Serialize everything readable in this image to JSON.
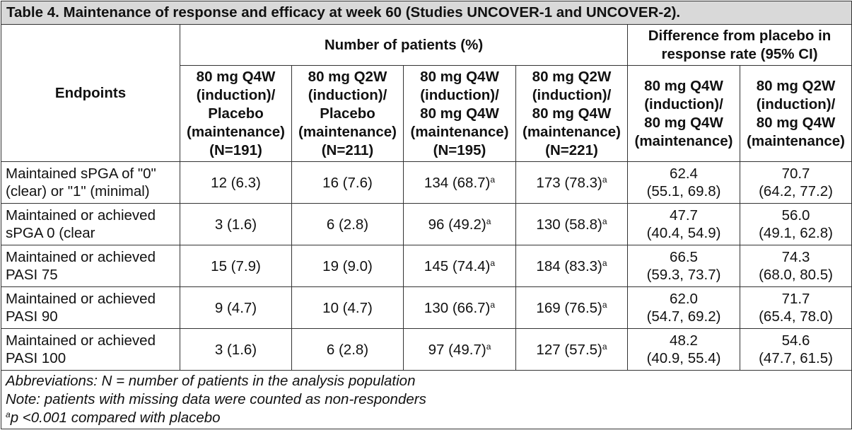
{
  "title": "Table 4. Maintenance of response and efficacy at week 60 (Studies UNCOVER-1 and UNCOVER-2).",
  "header": {
    "endpoints": "Endpoints",
    "number_of_patients": "Number of patients (%)",
    "difference": "Difference from placebo in response rate (95% CI)",
    "columns": [
      {
        "l1": "80 mg Q4W",
        "l2": "(induction)/",
        "l3": "Placebo",
        "l4": "(maintenance)",
        "l5": "(N=191)"
      },
      {
        "l1": "80 mg Q2W",
        "l2": "(induction)/",
        "l3": "Placebo",
        "l4": "(maintenance)",
        "l5": "(N=211)"
      },
      {
        "l1": "80 mg Q4W",
        "l2": "(induction)/",
        "l3": "80 mg Q4W",
        "l4": "(maintenance)",
        "l5": "(N=195)"
      },
      {
        "l1": "80 mg Q2W",
        "l2": "(induction)/",
        "l3": "80 mg Q4W",
        "l4": "(maintenance)",
        "l5": "(N=221)"
      },
      {
        "l1": "80 mg Q4W",
        "l2": "(induction)/",
        "l3": "80 mg Q4W",
        "l4": "(maintenance)"
      },
      {
        "l1": "80 mg Q2W",
        "l2": "(induction)/",
        "l3": "80 mg Q4W",
        "l4": "(maintenance)"
      }
    ]
  },
  "rows": [
    {
      "l1": "Maintained sPGA of \"0\"",
      "l2": "(clear) or \"1\" (minimal)",
      "v1": "12 (6.3)",
      "v2": "16 (7.6)",
      "v3": "134 (68.7)",
      "v4": "173 (78.3)",
      "d1a": "62.4",
      "d1b": "(55.1, 69.8)",
      "d2a": "70.7",
      "d2b": "(64.2, 77.2)"
    },
    {
      "l1": "Maintained or achieved",
      "l2": "sPGA 0 (clear",
      "v1": "3 (1.6)",
      "v2": "6 (2.8)",
      "v3": "96 (49.2)",
      "v4": "130 (58.8)",
      "d1a": "47.7",
      "d1b": "(40.4, 54.9)",
      "d2a": "56.0",
      "d2b": "(49.1, 62.8)"
    },
    {
      "l1": "Maintained or achieved",
      "l2": "PASI 75",
      "v1": "15 (7.9)",
      "v2": "19 (9.0)",
      "v3": "145 (74.4)",
      "v4": "184 (83.3)",
      "d1a": "66.5",
      "d1b": "(59.3, 73.7)",
      "d2a": "74.3",
      "d2b": "(68.0, 80.5)"
    },
    {
      "l1": "Maintained or achieved",
      "l2": "PASI 90",
      "v1": "9 (4.7)",
      "v2": "10 (4.7)",
      "v3": "130 (66.7)",
      "v4": "169 (76.5)",
      "d1a": "62.0",
      "d1b": "(54.7, 69.2)",
      "d2a": "71.7",
      "d2b": "(65.4, 78.0)"
    },
    {
      "l1": "Maintained or achieved",
      "l2": "PASI 100",
      "v1": "3 (1.6)",
      "v2": "6 (2.8)",
      "v3": "97 (49.7)",
      "v4": "127 (57.5)",
      "d1a": "48.2",
      "d1b": "(40.9, 55.4)",
      "d2a": "54.6",
      "d2b": "(47.7, 61.5)"
    }
  ],
  "superscript": "a",
  "footnotes": {
    "abbreviations": "Abbreviations: N = number of patients in the analysis population",
    "note": "Note: patients with missing data were counted as non-responders",
    "sig_marker": "a",
    "sig_text": "p <0.001 compared with placebo"
  }
}
